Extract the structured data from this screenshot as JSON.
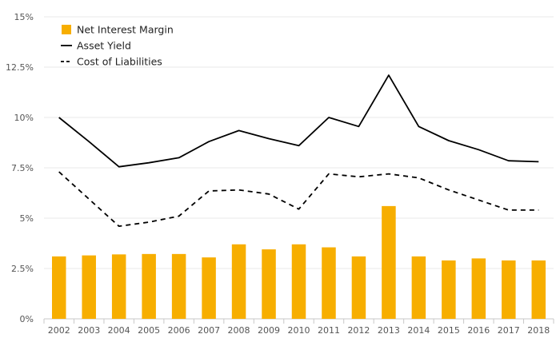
{
  "chart_data": {
    "type": "bar",
    "title": "",
    "xlabel": "",
    "ylabel": "",
    "categories": [
      "2002",
      "2003",
      "2004",
      "2005",
      "2006",
      "2007",
      "2008",
      "2009",
      "2010",
      "2011",
      "2012",
      "2013",
      "2014",
      "2015",
      "2016",
      "2017",
      "2018"
    ],
    "ylim": [
      0,
      15
    ],
    "yticks": [
      {
        "value": 0,
        "label": "0%"
      },
      {
        "value": 2.5,
        "label": "2.5%"
      },
      {
        "value": 5,
        "label": "5%"
      },
      {
        "value": 7.5,
        "label": "7.5%"
      },
      {
        "value": 10,
        "label": "10%"
      },
      {
        "value": 12.5,
        "label": "12.5%"
      },
      {
        "value": 15,
        "label": "15%"
      }
    ],
    "grid": true,
    "legend_position": "top-left",
    "series": [
      {
        "name": "Net Interest Margin",
        "kind": "bar",
        "color": "#F7AE00",
        "values": [
          3.1,
          3.15,
          3.2,
          3.22,
          3.22,
          3.05,
          3.7,
          3.45,
          3.7,
          3.55,
          3.1,
          5.6,
          3.1,
          2.9,
          3.0,
          2.9,
          2.9
        ]
      },
      {
        "name": "Asset Yield",
        "kind": "line",
        "color": "#000000",
        "dash": "solid",
        "values": [
          10.0,
          8.8,
          7.55,
          7.75,
          8.0,
          8.8,
          9.35,
          8.95,
          8.6,
          10.0,
          9.55,
          12.1,
          9.55,
          8.85,
          8.4,
          7.85,
          7.8
        ]
      },
      {
        "name": "Cost of Liabilities",
        "kind": "line",
        "color": "#000000",
        "dash": "dashed",
        "values": [
          7.3,
          5.95,
          4.6,
          4.8,
          5.1,
          6.35,
          6.4,
          6.2,
          5.45,
          7.2,
          7.05,
          7.2,
          7.0,
          6.4,
          5.9,
          5.4,
          5.4
        ]
      }
    ]
  }
}
